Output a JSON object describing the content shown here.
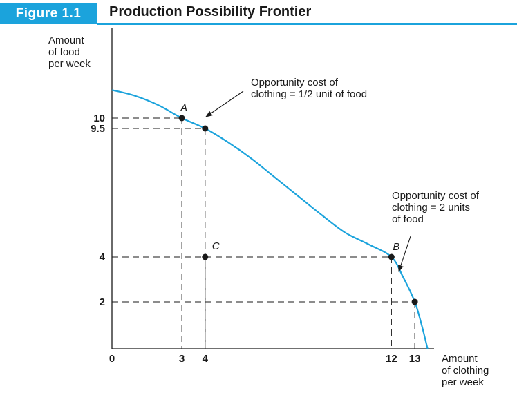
{
  "figure": {
    "badge": "Figure 1.1",
    "title": "Production Possibility Frontier"
  },
  "colors": {
    "accent": "#1ba3dc",
    "curve": "#1ba3dc",
    "text": "#1a1a1a"
  },
  "chart_data": {
    "type": "line",
    "title": "Production Possibility Frontier",
    "xlabel": [
      "Amount",
      "of clothing",
      "per week"
    ],
    "ylabel": [
      "Amount",
      "of food",
      "per week"
    ],
    "xlim": [
      0,
      14.2
    ],
    "ylim": [
      0,
      11.8
    ],
    "x_ticks": [
      {
        "value": 0,
        "label": "0"
      },
      {
        "value": 3,
        "label": "3"
      },
      {
        "value": 4,
        "label": "4"
      },
      {
        "value": 12,
        "label": "12"
      },
      {
        "value": 13,
        "label": "13"
      }
    ],
    "y_ticks": [
      {
        "value": 10,
        "label": "10"
      },
      {
        "value": 9.5,
        "label": "9.5"
      },
      {
        "value": 4,
        "label": "4"
      },
      {
        "value": 2,
        "label": "2"
      }
    ],
    "series": [
      {
        "x": [
          0,
          1,
          2,
          3,
          4,
          5,
          6,
          7,
          8,
          9,
          10,
          11,
          12,
          12.5,
          13,
          13.3,
          13.55
        ],
        "y": [
          11.2,
          10.95,
          10.55,
          10,
          9.5,
          8.9,
          8.2,
          7.4,
          6.6,
          5.8,
          5.05,
          4.55,
          4,
          3.1,
          2,
          1,
          0
        ]
      }
    ],
    "points": [
      {
        "label": "A",
        "x": 3,
        "y": 10
      },
      {
        "label": "",
        "x": 4,
        "y": 9.5
      },
      {
        "label": "C",
        "x": 4,
        "y": 4
      },
      {
        "label": "B",
        "x": 12,
        "y": 4
      },
      {
        "label": "",
        "x": 13,
        "y": 2
      }
    ],
    "annotations": [
      {
        "lines": [
          "Opportunity cost of",
          "clothing = 1/2 unit of food"
        ]
      },
      {
        "lines": [
          "Opportunity cost of",
          "clothing = 2 units",
          "of food"
        ]
      }
    ],
    "grid": false,
    "legend": "none"
  }
}
